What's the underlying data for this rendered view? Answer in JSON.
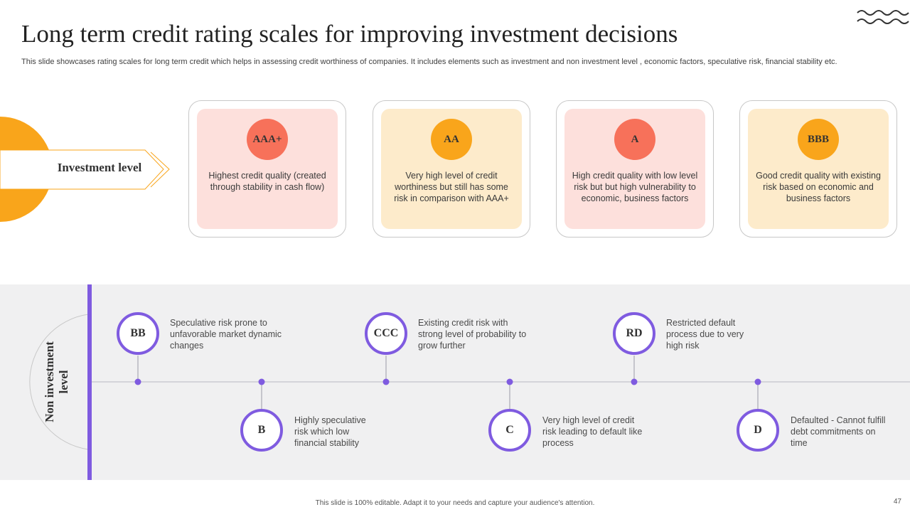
{
  "title": "Long term credit rating scales for improving investment decisions",
  "subtitle": "This slide showcases rating scales for long term credit which helps in assessing credit worthiness of companies. It includes elements such as investment and non investment level , economic factors, speculative risk, financial stability etc.",
  "colors": {
    "accent_orange": "#f9a51b",
    "accent_purple": "#7f5be0",
    "salmon": "#f7715a",
    "pink_bg": "#fde0dc",
    "cream_bg": "#fdebcb"
  },
  "investment": {
    "label": "Investment level",
    "cards": [
      {
        "rating": "AAA+",
        "text": "Highest credit quality (created through stability in cash flow)"
      },
      {
        "rating": "AA",
        "text": "Very high level of credit worthiness but still has some risk in comparison with AAA+"
      },
      {
        "rating": "A",
        "text": "High credit quality with low level risk but but high vulnerability to economic, business factors"
      },
      {
        "rating": "BBB",
        "text": "Good credit quality with existing risk based on economic and business factors"
      }
    ]
  },
  "non_investment": {
    "label": "Non investment level",
    "nodes": [
      {
        "rating": "BB",
        "text": "Speculative risk prone to unfavorable market dynamic changes"
      },
      {
        "rating": "B",
        "text": "Highly speculative risk which low financial stability"
      },
      {
        "rating": "CCC",
        "text": "Existing credit risk with strong level of probability to grow further"
      },
      {
        "rating": "C",
        "text": "Very high level of credit risk leading to default like process"
      },
      {
        "rating": "RD",
        "text": "Restricted default process due to very high risk"
      },
      {
        "rating": "D",
        "text": "Defaulted - Cannot fulfill debt commitments on time"
      }
    ]
  },
  "footer": "This slide is 100% editable. Adapt it to your needs and capture your audience's attention.",
  "page_number": "47"
}
